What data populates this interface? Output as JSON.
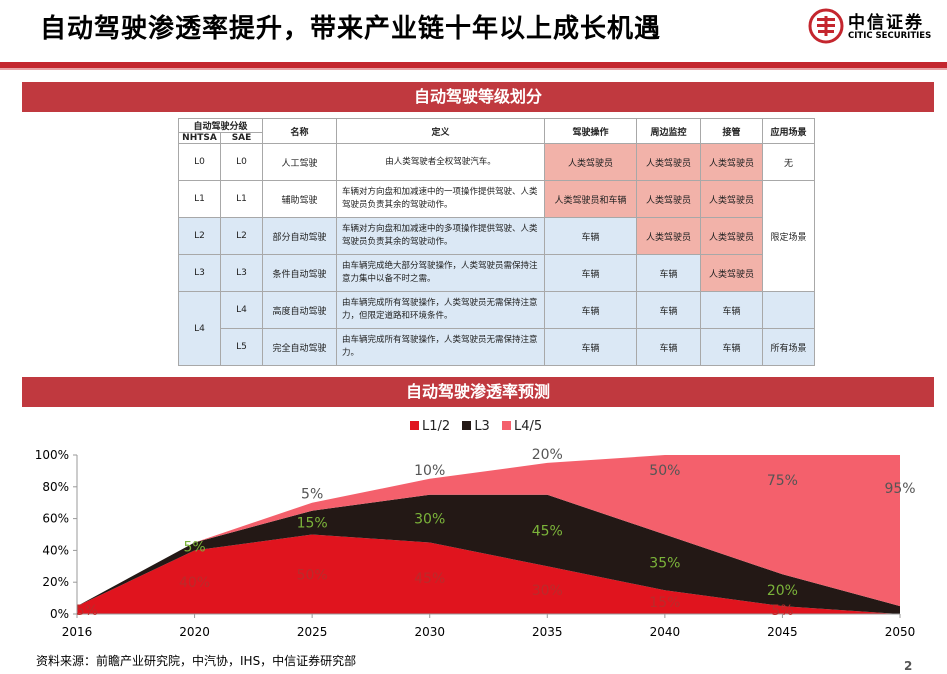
{
  "header": {
    "title": "自动驾驶渗透率提升，带来产业链十年以上成长机遇",
    "logo_cn": "中信证券",
    "logo_en": "CITIC SECURITIES",
    "accent": "#c4262e"
  },
  "section1": {
    "title": "自动驾驶等级划分"
  },
  "table": {
    "header_group": "自动驾驶分级",
    "headers": [
      "NHTSA",
      "SAE",
      "名称",
      "定义",
      "驾驶操作",
      "周边监控",
      "接管",
      "应用场景"
    ],
    "rows": [
      {
        "nhtsa": "L0",
        "sae": "L0",
        "name": "人工驾驶",
        "definition": "由人类驾驶者全权驾驶汽车。",
        "driving": "人类驾驶员",
        "monitoring": "人类驾驶员",
        "takeover": "人类驾驶员",
        "scenario": "无"
      },
      {
        "nhtsa": "L1",
        "sae": "L1",
        "name": "辅助驾驶",
        "definition": "车辆对方向盘和加减速中的一项操作提供驾驶、人类驾驶员负责其余的驾驶动作。",
        "driving": "人类驾驶员和车辆",
        "monitoring": "人类驾驶员",
        "takeover": "人类驾驶员",
        "scenario": ""
      },
      {
        "nhtsa": "L2",
        "sae": "L2",
        "name": "部分自动驾驶",
        "definition": "车辆对方向盘和加减速中的多项操作提供驾驶、人类驾驶员负责其余的驾驶动作。",
        "driving": "车辆",
        "monitoring": "人类驾驶员",
        "takeover": "人类驾驶员",
        "scenario": "限定场景"
      },
      {
        "nhtsa": "L3",
        "sae": "L3",
        "name": "条件自动驾驶",
        "definition": "由车辆完成绝大部分驾驶操作，人类驾驶员需保持注意力集中以备不时之需。",
        "driving": "车辆",
        "monitoring": "车辆",
        "takeover": "人类驾驶员",
        "scenario": ""
      },
      {
        "nhtsa": "L4",
        "sae": "L4",
        "name": "高度自动驾驶",
        "definition": "由车辆完成所有驾驶操作，人类驾驶员无需保持注意力，但限定道路和环境条件。",
        "driving": "车辆",
        "monitoring": "车辆",
        "takeover": "车辆",
        "scenario": ""
      },
      {
        "nhtsa": "",
        "sae": "L5",
        "name": "完全自动驾驶",
        "definition": "由车辆完成所有驾驶操作，人类驾驶员无需保持注意力。",
        "driving": "车辆",
        "monitoring": "车辆",
        "takeover": "车辆",
        "scenario": "所有场景"
      }
    ]
  },
  "section2": {
    "title": "自动驾驶渗透率预测"
  },
  "chart_data": {
    "type": "area",
    "stacked": true,
    "x": [
      2016,
      2020,
      2025,
      2030,
      2035,
      2040,
      2045,
      2050
    ],
    "x_tick_labels": [
      "2016",
      "2020",
      "2025",
      "2030",
      "2035",
      "2040",
      "2045",
      "2050"
    ],
    "ylim": [
      0,
      100
    ],
    "y_tick_labels": [
      "0%",
      "20%",
      "40%",
      "60%",
      "80%",
      "100%"
    ],
    "grid": false,
    "legend_position": "top",
    "series": [
      {
        "name": "L1/2",
        "color": "#e0141e",
        "values": [
          5,
          40,
          50,
          45,
          30,
          15,
          5,
          0
        ],
        "labels": [
          "5%",
          "40%",
          "50%",
          "45%",
          "30%",
          "15%",
          "5%",
          ""
        ]
      },
      {
        "name": "L3",
        "color": "#231815",
        "values": [
          0,
          5,
          15,
          30,
          45,
          35,
          20,
          5
        ],
        "labels": [
          "",
          "5%",
          "15%",
          "30%",
          "45%",
          "35%",
          "20%",
          ""
        ]
      },
      {
        "name": "L4/5",
        "color": "#f4606c",
        "values": [
          0,
          0,
          5,
          10,
          20,
          50,
          75,
          95
        ],
        "labels": [
          "",
          "",
          "5%",
          "10%",
          "20%",
          "50%",
          "75%",
          "95%"
        ]
      }
    ]
  },
  "footer": {
    "source": "资料来源：前瞻产业研究院，中汽协，IHS，中信证券研究部",
    "page": "2"
  }
}
